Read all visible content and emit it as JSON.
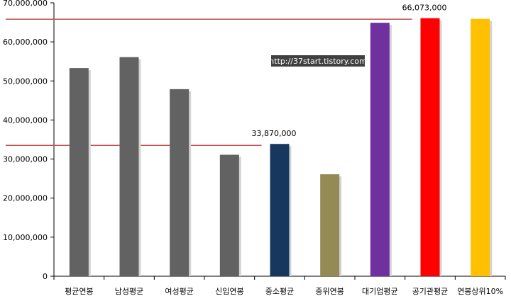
{
  "chart_data": {
    "type": "bar",
    "categories": [
      "평균연봉",
      "남성평균",
      "여성평균",
      "신입연봉",
      "중소평균",
      "중위연봉",
      "대기업평균",
      "공기관평균",
      "연봉상위10%"
    ],
    "values": [
      53300000,
      56100000,
      47900000,
      31100000,
      33870000,
      26100000,
      64900000,
      66073000,
      65900000
    ],
    "colors": [
      "#626262",
      "#626262",
      "#626262",
      "#626262",
      "#17375e",
      "#948a54",
      "#7030a0",
      "#ff0000",
      "#ffc000"
    ],
    "ylim": [
      0,
      70000000
    ],
    "yticks": [
      "0",
      "10,000,000",
      "20,000,000",
      "30,000,000",
      "40,000,000",
      "50,000,000",
      "60,000,000",
      "70,000,000"
    ],
    "data_labels": [
      {
        "category_index": 4,
        "text": "33,870,000"
      },
      {
        "category_index": 7,
        "text": "66,073,000"
      }
    ],
    "reference_lines": [
      {
        "value": 33500000,
        "color": "#c0504d",
        "from_index": 0,
        "to_index": 4
      },
      {
        "value": 65800000,
        "color": "#c0504d",
        "from_index": 0,
        "to_index": 7
      }
    ],
    "grid": false,
    "legend": "none"
  },
  "watermark": "http://37start.tistory.com"
}
